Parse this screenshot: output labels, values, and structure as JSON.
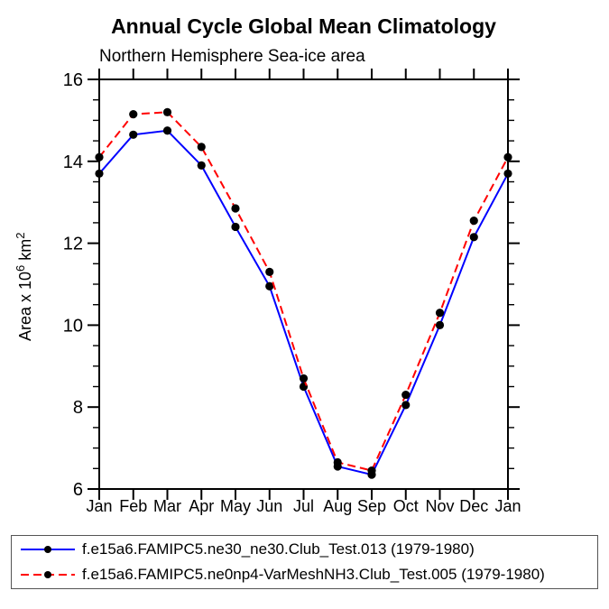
{
  "header": {
    "title": "Annual Cycle Global Mean Climatology",
    "subtitle": "Northern Hemisphere Sea-ice area"
  },
  "chart_data": {
    "type": "line",
    "title": "Annual Cycle Global Mean Climatology",
    "subtitle": "Northern Hemisphere Sea-ice area",
    "ylabel": "Area x 10⁶ km²",
    "ylabel_parts": [
      {
        "text": "Area x 10"
      },
      {
        "text": "6",
        "sup": true
      },
      {
        "text": " km"
      },
      {
        "text": "2",
        "sup": true
      }
    ],
    "xlabel": "",
    "x_categories": [
      "Jan",
      "Feb",
      "Mar",
      "Apr",
      "May",
      "Jun",
      "Jul",
      "Aug",
      "Sep",
      "Oct",
      "Nov",
      "Dec",
      "Jan"
    ],
    "ylim": [
      6,
      16
    ],
    "y_major_ticks": [
      6,
      8,
      10,
      12,
      14,
      16
    ],
    "y_minor_step": 0.5,
    "grid": false,
    "legend_position": "bottom",
    "axis_color": "#000000",
    "marker_color": "#000000",
    "series": [
      {
        "name": "f.e15a6.FAMIPC5.ne30_ne30.Club_Test.013 (1979-1980)",
        "color": "#0000ff",
        "line_style": "solid",
        "marker": "filled-circle",
        "values": [
          13.7,
          14.65,
          14.75,
          13.9,
          12.4,
          10.95,
          8.5,
          6.55,
          6.35,
          8.05,
          10.0,
          12.15,
          13.7
        ]
      },
      {
        "name": "f.e15a6.FAMIPC5.ne0np4-VarMeshNH3.Club_Test.005 (1979-1980)",
        "color": "#ff0000",
        "line_style": "dashed",
        "marker": "filled-circle",
        "values": [
          14.1,
          15.15,
          15.2,
          14.35,
          12.85,
          11.3,
          8.7,
          6.65,
          6.45,
          8.3,
          10.3,
          12.55,
          14.1
        ]
      }
    ]
  }
}
